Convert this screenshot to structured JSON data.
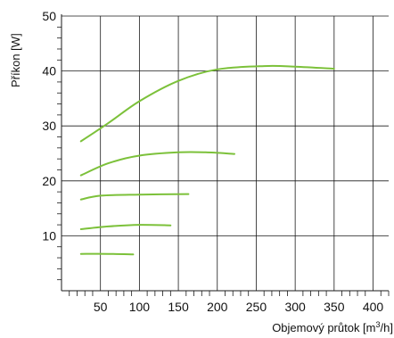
{
  "chart_data": {
    "type": "line",
    "ylabel": "Příkon [W]",
    "xlabel_text": "Objemový průtok [m",
    "xlabel_sup": "3",
    "xlabel_tail": "/h]",
    "xlim": [
      0,
      420
    ],
    "ylim": [
      0,
      50
    ],
    "x_ticks": [
      50,
      100,
      150,
      200,
      250,
      300,
      350,
      400
    ],
    "y_ticks": [
      10,
      20,
      30,
      40,
      50
    ],
    "grid": true,
    "line_color": "#7cc13a",
    "series": [
      {
        "x": [
          25,
          60,
          100,
          150,
          200,
          260,
          300,
          350
        ],
        "values": [
          27.2,
          30.5,
          34.5,
          38.2,
          40.3,
          40.9,
          40.8,
          40.4
        ]
      },
      {
        "x": [
          25,
          60,
          100,
          150,
          185,
          222
        ],
        "values": [
          21.0,
          23.2,
          24.6,
          25.2,
          25.2,
          24.9
        ]
      },
      {
        "x": [
          25,
          50,
          100,
          163
        ],
        "values": [
          16.6,
          17.3,
          17.5,
          17.6
        ]
      },
      {
        "x": [
          25,
          60,
          100,
          140
        ],
        "values": [
          11.2,
          11.7,
          12.0,
          11.9
        ]
      },
      {
        "x": [
          25,
          60,
          92
        ],
        "values": [
          6.7,
          6.7,
          6.6
        ]
      }
    ]
  }
}
